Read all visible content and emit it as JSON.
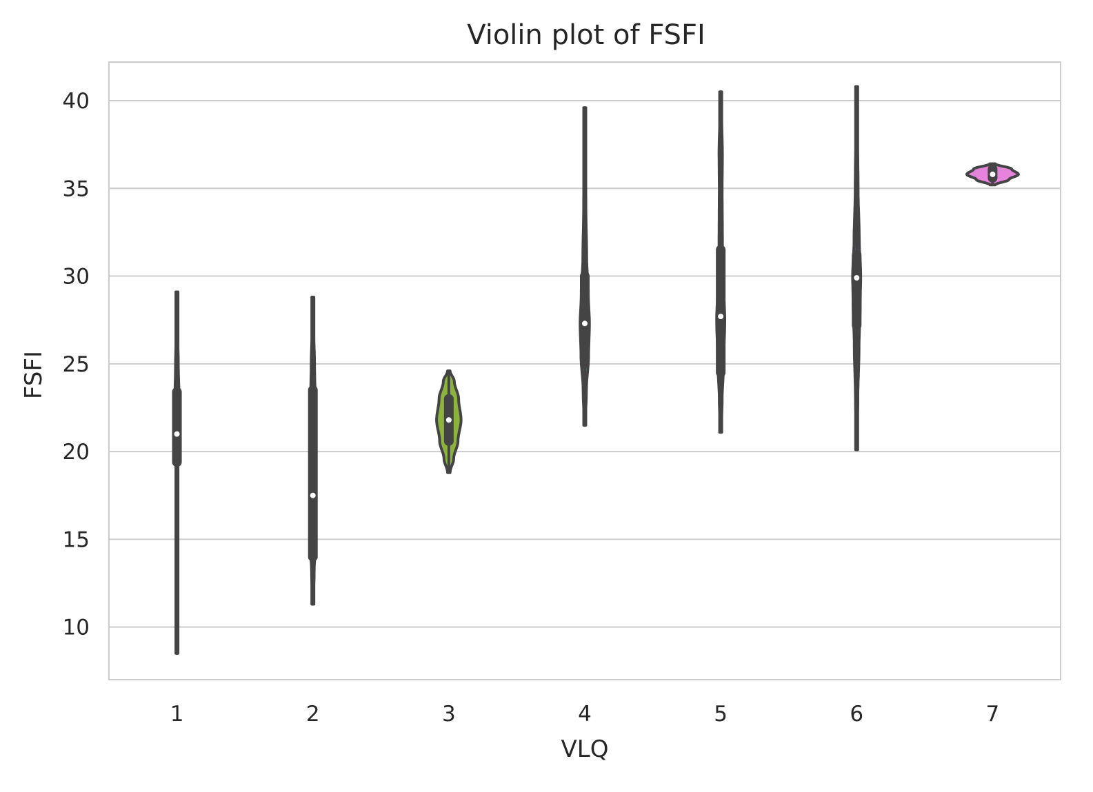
{
  "chart_data": {
    "type": "violin",
    "title": "Violin plot of FSFI",
    "xlabel": "VLQ",
    "ylabel": "FSFI",
    "categories": [
      "1",
      "2",
      "3",
      "4",
      "5",
      "6",
      "7"
    ],
    "ylim": [
      7,
      42.2
    ],
    "yticks": [
      10,
      15,
      20,
      25,
      30,
      35,
      40
    ],
    "grid": "horizontal",
    "violins": [
      {
        "category": "1",
        "color": "#f0879e",
        "min": 8.5,
        "max": 29.1,
        "q1": 19.4,
        "median": 21.0,
        "q3": 23.4,
        "width": 0.05,
        "density": [
          [
            8.5,
            0.1
          ],
          [
            12,
            0.15
          ],
          [
            16,
            0.2
          ],
          [
            19,
            0.3
          ],
          [
            21,
            0.55
          ],
          [
            23,
            0.6
          ],
          [
            25,
            0.4
          ],
          [
            27,
            0.2
          ],
          [
            29.1,
            0.1
          ]
        ]
      },
      {
        "category": "2",
        "color": "#c8a04c",
        "min": 11.3,
        "max": 28.8,
        "q1": 14.0,
        "median": 17.5,
        "q3": 23.5,
        "width": 0.06,
        "density": [
          [
            11.3,
            0.1
          ],
          [
            13,
            0.3
          ],
          [
            15,
            0.65
          ],
          [
            17,
            0.8
          ],
          [
            19,
            0.5
          ],
          [
            21,
            0.45
          ],
          [
            23,
            0.55
          ],
          [
            25,
            0.4
          ],
          [
            27,
            0.2
          ],
          [
            28.8,
            0.1
          ]
        ]
      },
      {
        "category": "3",
        "color": "#8db33e",
        "min": 18.8,
        "max": 24.6,
        "q1": 20.6,
        "median": 21.8,
        "q3": 23.0,
        "width": 0.18,
        "density": [
          [
            18.8,
            0.1
          ],
          [
            19.6,
            0.4
          ],
          [
            20.6,
            0.75
          ],
          [
            21.8,
            1.0
          ],
          [
            23.0,
            0.8
          ],
          [
            24.0,
            0.45
          ],
          [
            24.6,
            0.1
          ]
        ]
      },
      {
        "category": "4",
        "color": "#3fae8a",
        "min": 21.5,
        "max": 39.6,
        "q1": 25.0,
        "median": 27.3,
        "q3": 30.0,
        "width": 0.08,
        "density": [
          [
            21.5,
            0.1
          ],
          [
            23.5,
            0.3
          ],
          [
            25.5,
            0.7
          ],
          [
            27.3,
            0.85
          ],
          [
            29,
            0.65
          ],
          [
            31,
            0.35
          ],
          [
            34,
            0.2
          ],
          [
            37,
            0.15
          ],
          [
            39.6,
            0.1
          ]
        ]
      },
      {
        "category": "5",
        "color": "#3ba8b5",
        "min": 21.1,
        "max": 40.5,
        "q1": 24.5,
        "median": 27.7,
        "q3": 31.5,
        "width": 0.07,
        "density": [
          [
            21.1,
            0.1
          ],
          [
            23,
            0.3
          ],
          [
            25,
            0.6
          ],
          [
            27.5,
            0.85
          ],
          [
            29.5,
            0.6
          ],
          [
            32,
            0.35
          ],
          [
            35,
            0.3
          ],
          [
            37,
            0.35
          ],
          [
            39,
            0.2
          ],
          [
            40.5,
            0.1
          ]
        ]
      },
      {
        "category": "6",
        "color": "#a48bd0",
        "min": 20.1,
        "max": 40.8,
        "q1": 27.2,
        "median": 29.9,
        "q3": 31.2,
        "width": 0.07,
        "density": [
          [
            20.1,
            0.1
          ],
          [
            23,
            0.25
          ],
          [
            26,
            0.5
          ],
          [
            28.5,
            0.75
          ],
          [
            30,
            0.85
          ],
          [
            32,
            0.55
          ],
          [
            35,
            0.3
          ],
          [
            38,
            0.2
          ],
          [
            40.8,
            0.1
          ]
        ]
      },
      {
        "category": "7",
        "color": "#e684db",
        "min": 35.2,
        "max": 36.4,
        "q1": 35.6,
        "median": 35.8,
        "q3": 36.1,
        "width": 0.4,
        "density": [
          [
            35.2,
            0.1
          ],
          [
            35.5,
            0.6
          ],
          [
            35.8,
            0.95
          ],
          [
            36.1,
            0.7
          ],
          [
            36.4,
            0.1
          ]
        ]
      }
    ]
  }
}
